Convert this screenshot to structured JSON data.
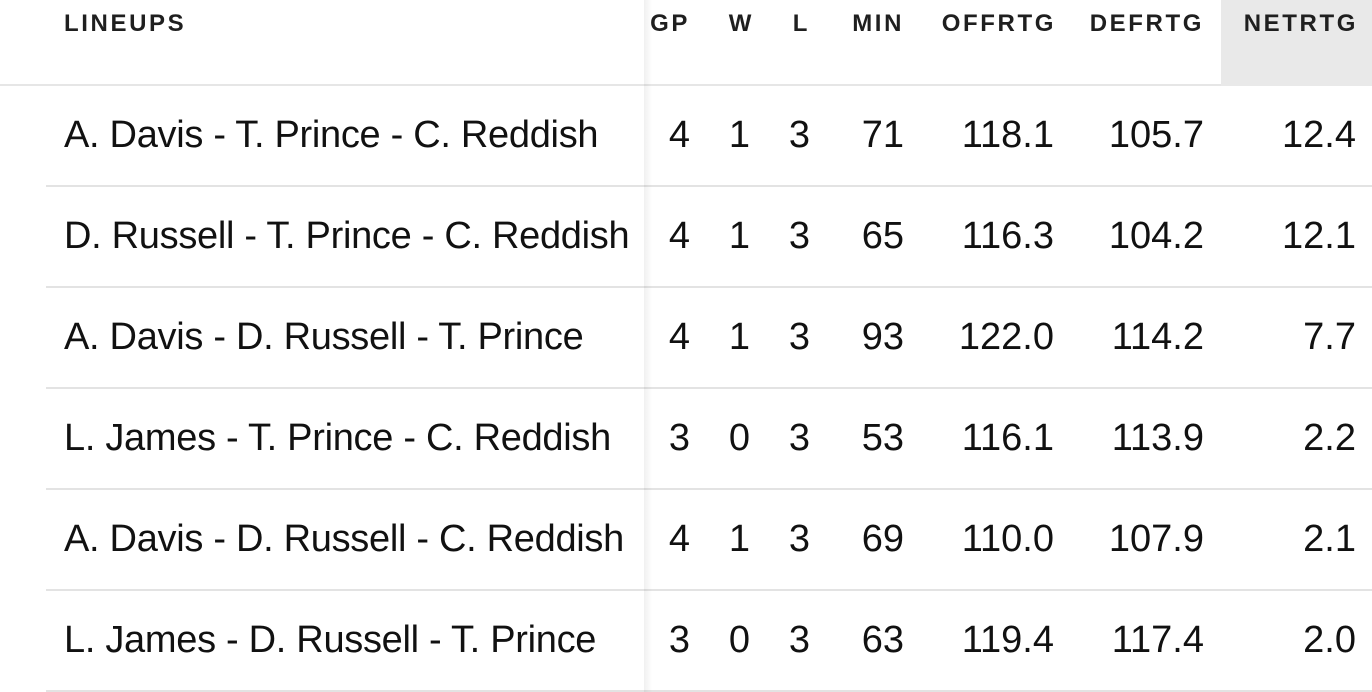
{
  "columns": {
    "lineups": "LINEUPS",
    "gp": "GP",
    "w": "W",
    "l": "L",
    "min": "MIN",
    "offrtg": "OFFRTG",
    "defrtg": "DEFRTG",
    "netrtg": "NETRTG"
  },
  "rows": [
    {
      "lineup": "A. Davis - T. Prince - C. Reddish",
      "gp": "4",
      "w": "1",
      "l": "3",
      "min": "71",
      "offrtg": "118.1",
      "defrtg": "105.7",
      "netrtg": "12.4"
    },
    {
      "lineup": "D. Russell - T. Prince - C. Reddish",
      "gp": "4",
      "w": "1",
      "l": "3",
      "min": "65",
      "offrtg": "116.3",
      "defrtg": "104.2",
      "netrtg": "12.1"
    },
    {
      "lineup": "A. Davis - D. Russell - T. Prince",
      "gp": "4",
      "w": "1",
      "l": "3",
      "min": "93",
      "offrtg": "122.0",
      "defrtg": "114.2",
      "netrtg": "7.7"
    },
    {
      "lineup": "L. James - T. Prince - C. Reddish",
      "gp": "3",
      "w": "0",
      "l": "3",
      "min": "53",
      "offrtg": "116.1",
      "defrtg": "113.9",
      "netrtg": "2.2"
    },
    {
      "lineup": "A. Davis - D. Russell - C. Reddish",
      "gp": "4",
      "w": "1",
      "l": "3",
      "min": "69",
      "offrtg": "110.0",
      "defrtg": "107.9",
      "netrtg": "2.1"
    },
    {
      "lineup": "L. James - D. Russell - T. Prince",
      "gp": "3",
      "w": "0",
      "l": "3",
      "min": "63",
      "offrtg": "119.4",
      "defrtg": "117.4",
      "netrtg": "2.0"
    }
  ],
  "colors": {
    "sorted_header_bg": "#e9e9e9",
    "row_border": "#e3e3e3",
    "text": "#111111"
  }
}
